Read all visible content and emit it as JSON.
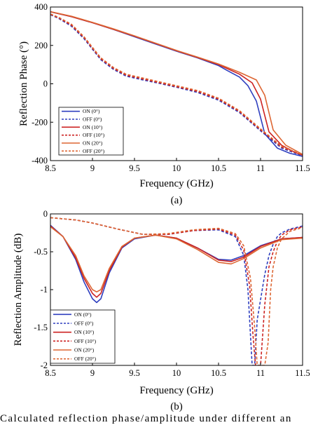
{
  "caption": "Calculated reflection phase/amplitude under different an",
  "colors": {
    "blue": "#2f3fbf",
    "red": "#cc2222",
    "orange": "#dd6633"
  },
  "chart_data": [
    {
      "id": "a",
      "type": "line",
      "sublabel": "(a)",
      "xlabel": "Frequency (GHz)",
      "ylabel": "Reflection Phase (°)",
      "xlim": [
        8.5,
        11.5
      ],
      "ylim": [
        -400,
        400
      ],
      "xticks": [
        "8.5",
        "9",
        "9.5",
        "10",
        "10.5",
        "11",
        "11.5"
      ],
      "yticks": [
        "400",
        "200",
        "0",
        "-200",
        "-400"
      ],
      "legend_position": "bottom-left",
      "series": [
        {
          "name": "ON (0°)",
          "color": "#2f3fbf",
          "dash": "solid",
          "x": [
            8.5,
            8.75,
            9.0,
            9.25,
            9.5,
            9.75,
            10.0,
            10.25,
            10.5,
            10.6,
            10.75,
            10.85,
            10.95,
            11.05,
            11.2,
            11.35,
            11.5
          ],
          "y": [
            375,
            350,
            318,
            283,
            245,
            207,
            170,
            135,
            95,
            70,
            35,
            -10,
            -90,
            -260,
            -335,
            -362,
            -378
          ]
        },
        {
          "name": "OFF (0°)",
          "color": "#2f3fbf",
          "dash": "dashed",
          "x": [
            8.5,
            8.6,
            8.75,
            8.9,
            9.0,
            9.1,
            9.25,
            9.4,
            9.6,
            9.8,
            10.0,
            10.25,
            10.5,
            10.75,
            11.0,
            11.25,
            11.5
          ],
          "y": [
            360,
            340,
            300,
            235,
            180,
            125,
            75,
            40,
            20,
            2,
            -18,
            -45,
            -85,
            -150,
            -245,
            -335,
            -375
          ]
        },
        {
          "name": "ON (10°)",
          "color": "#cc2222",
          "dash": "solid",
          "x": [
            8.5,
            8.75,
            9.0,
            9.25,
            9.5,
            9.75,
            10.0,
            10.25,
            10.5,
            10.75,
            10.9,
            11.0,
            11.1,
            11.25,
            11.4,
            11.5
          ],
          "y": [
            375,
            350,
            318,
            284,
            248,
            210,
            172,
            137,
            100,
            50,
            5,
            -80,
            -250,
            -320,
            -355,
            -372
          ]
        },
        {
          "name": "OFF (10°)",
          "color": "#cc2222",
          "dash": "dashed",
          "x": [
            8.5,
            8.6,
            8.75,
            8.9,
            9.0,
            9.1,
            9.25,
            9.4,
            9.6,
            9.8,
            10.0,
            10.25,
            10.5,
            10.75,
            11.0,
            11.25,
            11.5
          ],
          "y": [
            362,
            343,
            305,
            240,
            185,
            130,
            80,
            45,
            25,
            5,
            -15,
            -40,
            -80,
            -145,
            -240,
            -330,
            -372
          ]
        },
        {
          "name": "ON (20°)",
          "color": "#dd6633",
          "dash": "solid",
          "x": [
            8.5,
            8.75,
            9.0,
            9.25,
            9.5,
            9.75,
            10.0,
            10.25,
            10.5,
            10.75,
            10.95,
            11.05,
            11.15,
            11.3,
            11.5
          ],
          "y": [
            376,
            352,
            320,
            286,
            250,
            212,
            174,
            139,
            103,
            60,
            20,
            -60,
            -240,
            -320,
            -368
          ]
        },
        {
          "name": "OFF (20°)",
          "color": "#dd6633",
          "dash": "dashed",
          "x": [
            8.5,
            8.6,
            8.75,
            8.9,
            9.0,
            9.1,
            9.25,
            9.4,
            9.6,
            9.8,
            10.0,
            10.25,
            10.5,
            10.75,
            11.0,
            11.25,
            11.5
          ],
          "y": [
            364,
            346,
            310,
            245,
            190,
            135,
            85,
            50,
            30,
            10,
            -10,
            -35,
            -75,
            -140,
            -235,
            -325,
            -370
          ]
        }
      ]
    },
    {
      "id": "b",
      "type": "line",
      "sublabel": "(b)",
      "xlabel": "Frequency (GHz)",
      "ylabel": "Reflection Amplitude (dB)",
      "xlim": [
        8.5,
        11.5
      ],
      "ylim": [
        -2,
        0
      ],
      "xticks": [
        "8.5",
        "9",
        "9.5",
        "10",
        "10.5",
        "11",
        "11.5"
      ],
      "yticks": [
        "0",
        "-0.5",
        "-1",
        "-1.5",
        "-2"
      ],
      "legend_position": "bottom-left",
      "series": [
        {
          "name": "ON (0°)",
          "color": "#2f3fbf",
          "dash": "solid",
          "x": [
            8.5,
            8.65,
            8.8,
            8.9,
            9.0,
            9.05,
            9.1,
            9.2,
            9.35,
            9.5,
            9.75,
            10.0,
            10.25,
            10.5,
            10.65,
            10.8,
            11.0,
            11.25,
            11.5
          ],
          "y": [
            -0.15,
            -0.3,
            -0.6,
            -0.9,
            -1.12,
            -1.17,
            -1.12,
            -0.78,
            -0.45,
            -0.33,
            -0.28,
            -0.32,
            -0.45,
            -0.6,
            -0.61,
            -0.55,
            -0.42,
            -0.33,
            -0.31
          ]
        },
        {
          "name": "OFF (0°)",
          "color": "#2f3fbf",
          "dash": "dashed",
          "x": [
            8.5,
            8.8,
            9.0,
            9.3,
            9.6,
            9.9,
            10.2,
            10.5,
            10.7,
            10.8,
            10.85,
            10.88,
            10.9,
            10.93,
            10.96,
            11.05,
            11.1,
            11.15,
            11.2,
            11.25,
            11.35,
            11.5
          ],
          "y": [
            -0.05,
            -0.08,
            -0.12,
            -0.2,
            -0.27,
            -0.27,
            -0.22,
            -0.21,
            -0.3,
            -0.55,
            -1.0,
            -1.6,
            -2.0,
            -2.0,
            -1.4,
            -0.8,
            -0.55,
            -0.4,
            -0.3,
            -0.25,
            -0.2,
            -0.16
          ]
        },
        {
          "name": "ON (10°)",
          "color": "#cc2222",
          "dash": "solid",
          "x": [
            8.5,
            8.65,
            8.8,
            8.9,
            9.0,
            9.05,
            9.1,
            9.2,
            9.35,
            9.5,
            9.75,
            10.0,
            10.25,
            10.5,
            10.65,
            10.8,
            11.0,
            11.25,
            11.5
          ],
          "y": [
            -0.16,
            -0.3,
            -0.58,
            -0.85,
            -1.05,
            -1.1,
            -1.05,
            -0.75,
            -0.44,
            -0.32,
            -0.28,
            -0.32,
            -0.45,
            -0.61,
            -0.63,
            -0.57,
            -0.43,
            -0.33,
            -0.31
          ]
        },
        {
          "name": "OFF (10°)",
          "color": "#cc2222",
          "dash": "dashed",
          "x": [
            8.5,
            8.8,
            9.0,
            9.3,
            9.6,
            9.9,
            10.2,
            10.5,
            10.7,
            10.8,
            10.87,
            10.91,
            10.94,
            10.97,
            11.0,
            11.05,
            11.1,
            11.15,
            11.2,
            11.25,
            11.35,
            11.5
          ],
          "y": [
            -0.05,
            -0.08,
            -0.12,
            -0.2,
            -0.27,
            -0.27,
            -0.22,
            -0.2,
            -0.28,
            -0.48,
            -0.95,
            -1.6,
            -2.0,
            -2.0,
            -2.0,
            -1.2,
            -0.7,
            -0.5,
            -0.36,
            -0.28,
            -0.21,
            -0.17
          ]
        },
        {
          "name": "ON (20°)",
          "color": "#dd6633",
          "dash": "solid",
          "x": [
            8.5,
            8.65,
            8.8,
            8.9,
            9.0,
            9.05,
            9.1,
            9.2,
            9.35,
            9.5,
            9.75,
            10.0,
            10.25,
            10.5,
            10.65,
            10.8,
            11.0,
            11.25,
            11.5
          ],
          "y": [
            -0.17,
            -0.3,
            -0.55,
            -0.82,
            -1.0,
            -1.03,
            -1.0,
            -0.72,
            -0.43,
            -0.32,
            -0.28,
            -0.33,
            -0.47,
            -0.64,
            -0.66,
            -0.59,
            -0.45,
            -0.34,
            -0.32
          ]
        },
        {
          "name": "OFF (20°)",
          "color": "#dd6633",
          "dash": "dashed",
          "x": [
            8.5,
            8.8,
            9.0,
            9.3,
            9.6,
            9.9,
            10.2,
            10.5,
            10.7,
            10.8,
            10.88,
            10.93,
            10.96,
            11.05,
            11.09,
            11.12,
            11.15,
            11.2,
            11.25,
            11.35,
            11.5
          ],
          "y": [
            -0.05,
            -0.08,
            -0.12,
            -0.2,
            -0.27,
            -0.26,
            -0.21,
            -0.19,
            -0.26,
            -0.42,
            -0.85,
            -1.5,
            -2.0,
            -2.0,
            -1.7,
            -1.0,
            -0.7,
            -0.45,
            -0.33,
            -0.23,
            -0.18
          ]
        }
      ]
    }
  ]
}
